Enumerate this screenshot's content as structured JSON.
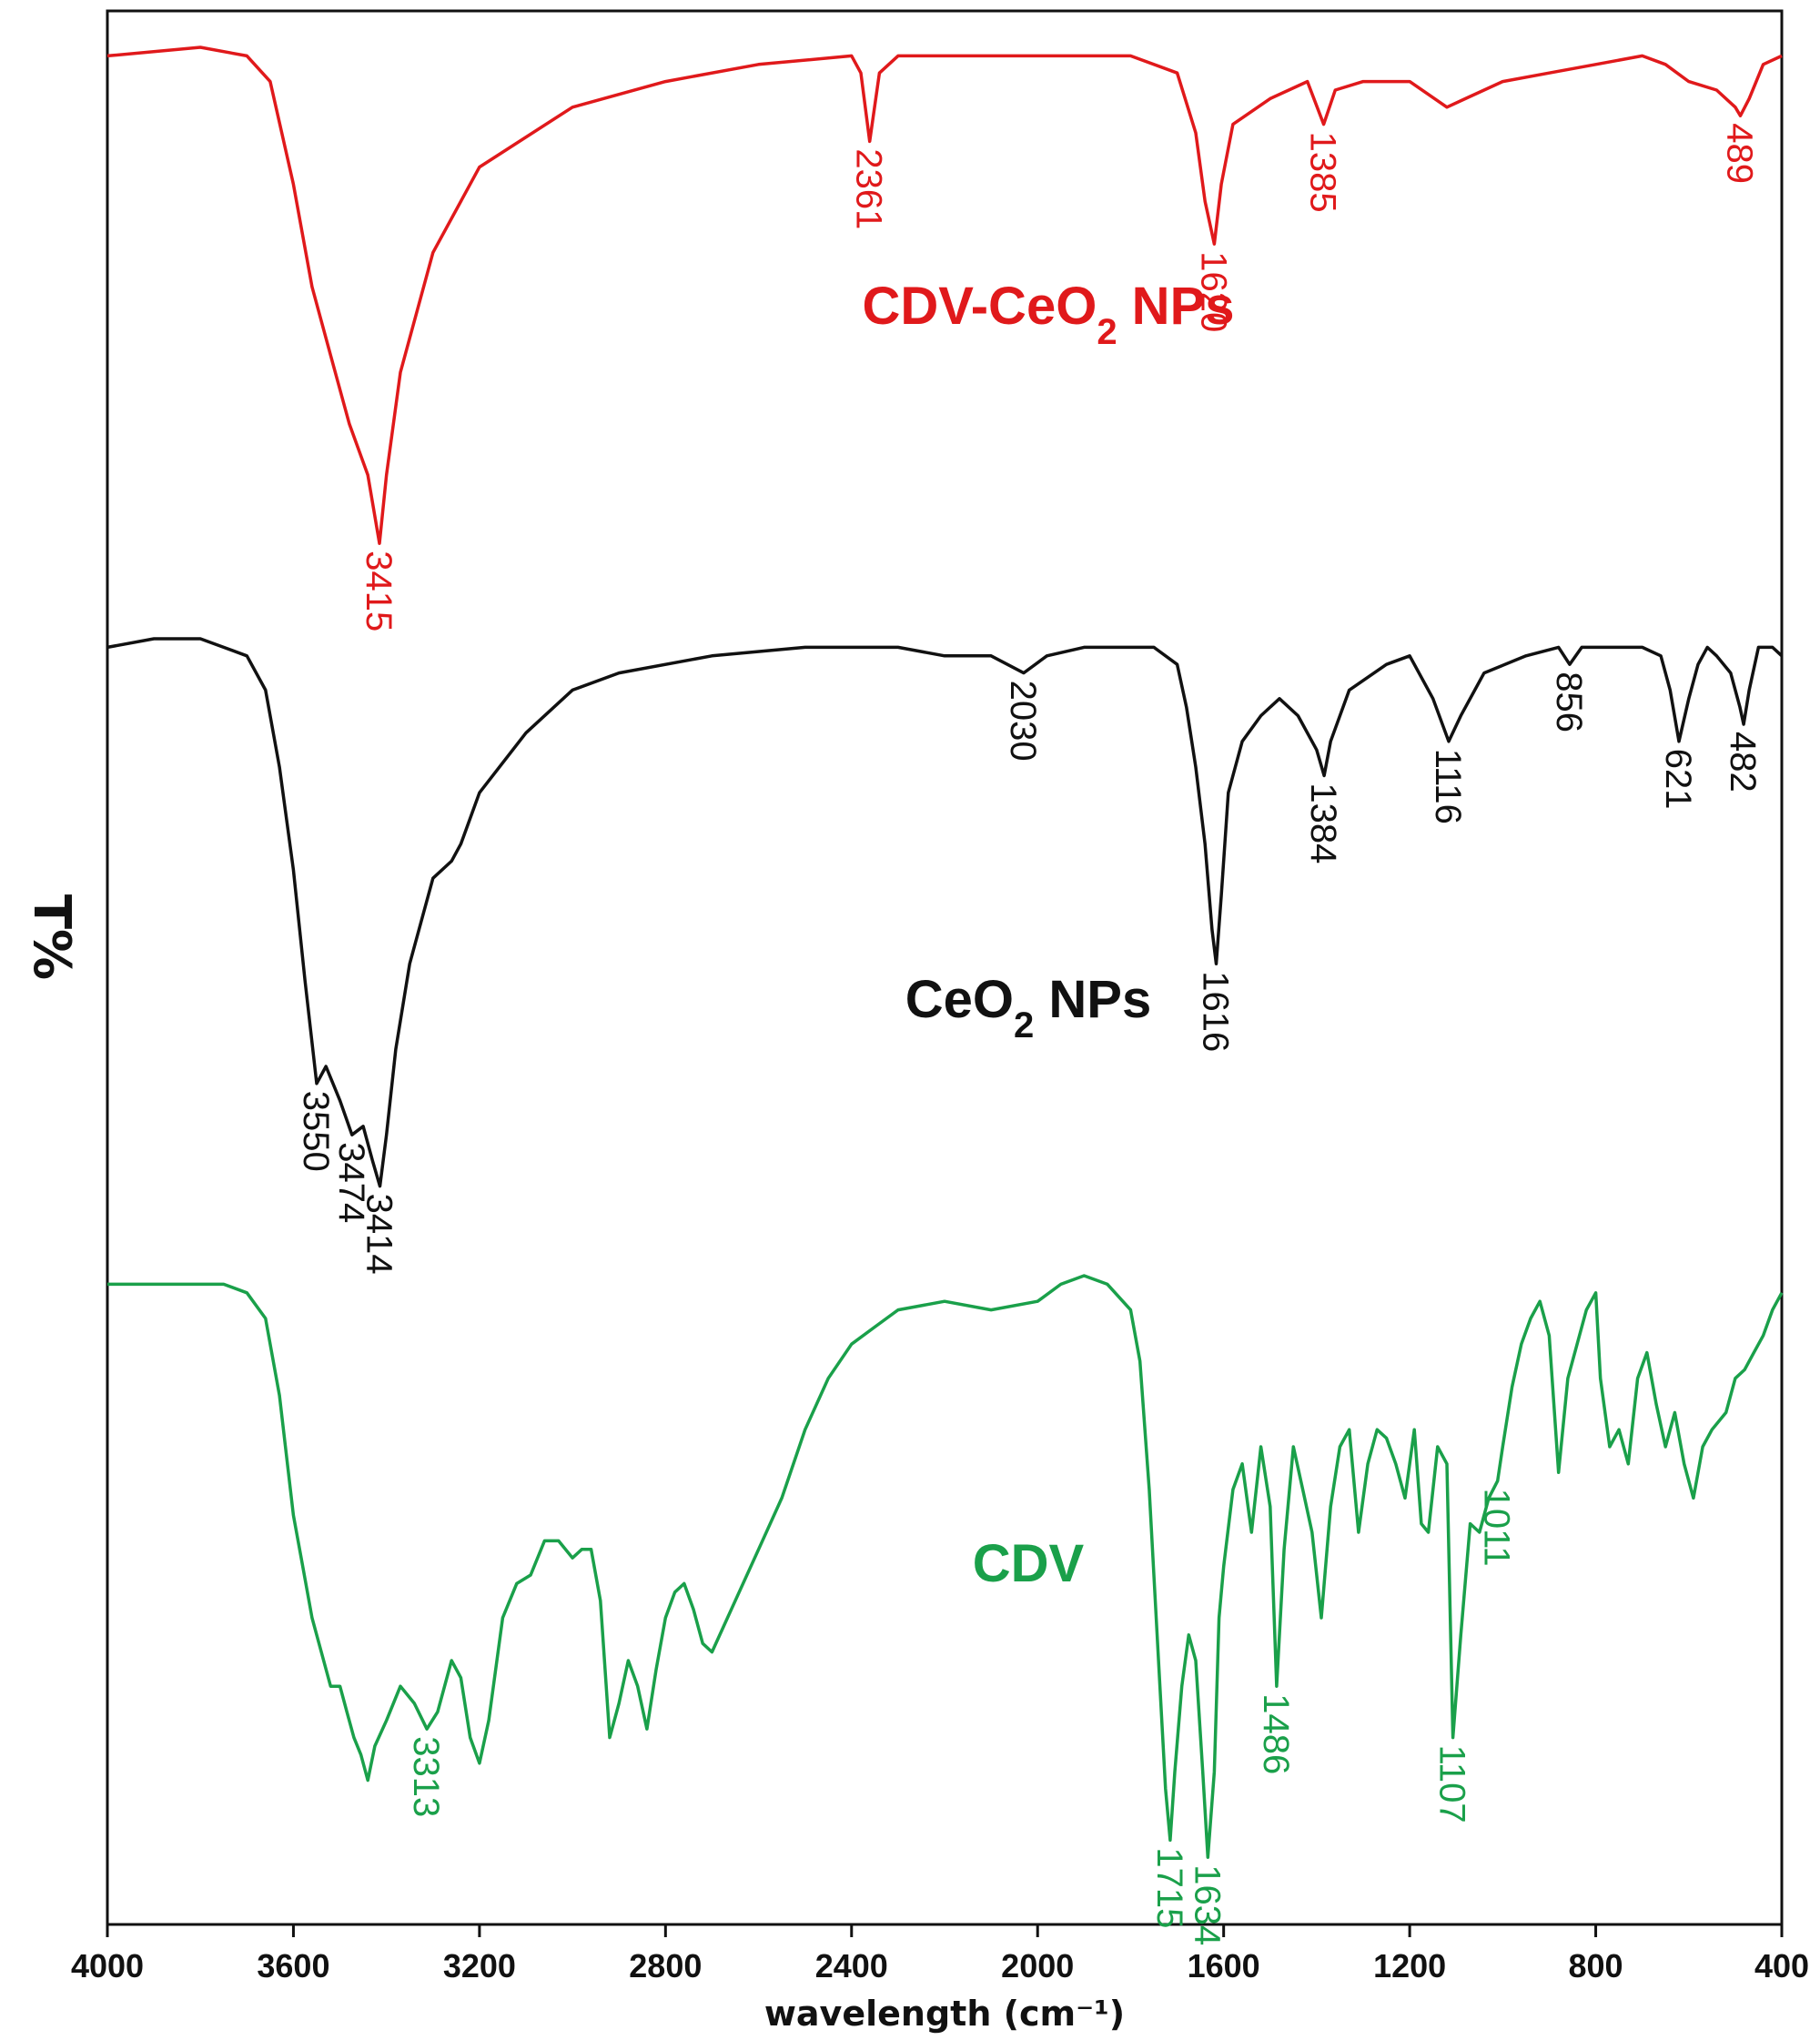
{
  "chart_data": {
    "type": "line",
    "xlabel": "wavelength (cm⁻¹)",
    "ylabel": "T%",
    "xlim": [
      4000,
      400
    ],
    "x_ticks": [
      4000,
      3600,
      3200,
      2800,
      2400,
      2000,
      1600,
      1200,
      800,
      400
    ],
    "grid": false,
    "legend": "none",
    "series": [
      {
        "key": "cdv_ceo2",
        "name": "CDV-CeO₂ NPs",
        "label_main": "CDV-CeO",
        "label_sub": "2",
        "label_tail": " NPs",
        "color": "#e0191b",
        "offset": 2.0,
        "points": [
          [
            4000,
            99
          ],
          [
            3800,
            100
          ],
          [
            3700,
            99
          ],
          [
            3650,
            96
          ],
          [
            3600,
            84
          ],
          [
            3560,
            72
          ],
          [
            3520,
            64
          ],
          [
            3480,
            56
          ],
          [
            3440,
            50
          ],
          [
            3415,
            42
          ],
          [
            3400,
            50
          ],
          [
            3370,
            62
          ],
          [
            3300,
            76
          ],
          [
            3200,
            86
          ],
          [
            3000,
            93
          ],
          [
            2800,
            96
          ],
          [
            2600,
            98
          ],
          [
            2400,
            99
          ],
          [
            2380,
            97
          ],
          [
            2361,
            89
          ],
          [
            2340,
            97
          ],
          [
            2300,
            99
          ],
          [
            2000,
            99
          ],
          [
            1800,
            99
          ],
          [
            1700,
            97
          ],
          [
            1660,
            90
          ],
          [
            1640,
            82
          ],
          [
            1620,
            77
          ],
          [
            1605,
            84
          ],
          [
            1580,
            91
          ],
          [
            1500,
            94
          ],
          [
            1420,
            96
          ],
          [
            1385,
            91
          ],
          [
            1360,
            95
          ],
          [
            1300,
            96
          ],
          [
            1200,
            96
          ],
          [
            1120,
            93
          ],
          [
            1080,
            94
          ],
          [
            1000,
            96
          ],
          [
            900,
            97
          ],
          [
            800,
            98
          ],
          [
            700,
            99
          ],
          [
            650,
            98
          ],
          [
            600,
            96
          ],
          [
            540,
            95
          ],
          [
            500,
            93
          ],
          [
            489,
            92
          ],
          [
            470,
            94
          ],
          [
            440,
            98
          ],
          [
            400,
            99
          ]
        ],
        "peaks": [
          3415,
          2361,
          1620,
          1385,
          489
        ]
      },
      {
        "key": "ceo2",
        "name": "CeO₂ NPs",
        "label_main": "CeO",
        "label_sub": "2",
        "label_tail": " NPs",
        "color": "#111111",
        "offset": 1.0,
        "points": [
          [
            4000,
            99
          ],
          [
            3900,
            100
          ],
          [
            3800,
            100
          ],
          [
            3750,
            99
          ],
          [
            3700,
            98
          ],
          [
            3660,
            94
          ],
          [
            3630,
            85
          ],
          [
            3600,
            73
          ],
          [
            3575,
            60
          ],
          [
            3550,
            48
          ],
          [
            3530,
            50
          ],
          [
            3500,
            46
          ],
          [
            3474,
            42
          ],
          [
            3450,
            43
          ],
          [
            3430,
            39
          ],
          [
            3414,
            36
          ],
          [
            3400,
            42
          ],
          [
            3380,
            52
          ],
          [
            3350,
            62
          ],
          [
            3300,
            72
          ],
          [
            3260,
            74
          ],
          [
            3240,
            76
          ],
          [
            3200,
            82
          ],
          [
            3100,
            89
          ],
          [
            3000,
            94
          ],
          [
            2900,
            96
          ],
          [
            2700,
            98
          ],
          [
            2500,
            99
          ],
          [
            2300,
            99
          ],
          [
            2200,
            98
          ],
          [
            2100,
            98
          ],
          [
            2030,
            96
          ],
          [
            1980,
            98
          ],
          [
            1900,
            99
          ],
          [
            1750,
            99
          ],
          [
            1700,
            97
          ],
          [
            1680,
            92
          ],
          [
            1660,
            85
          ],
          [
            1640,
            76
          ],
          [
            1625,
            66
          ],
          [
            1616,
            62
          ],
          [
            1605,
            70
          ],
          [
            1590,
            82
          ],
          [
            1560,
            88
          ],
          [
            1520,
            91
          ],
          [
            1480,
            93
          ],
          [
            1440,
            91
          ],
          [
            1400,
            87
          ],
          [
            1384,
            84
          ],
          [
            1370,
            88
          ],
          [
            1330,
            94
          ],
          [
            1250,
            97
          ],
          [
            1200,
            98
          ],
          [
            1150,
            93
          ],
          [
            1116,
            88
          ],
          [
            1090,
            91
          ],
          [
            1040,
            96
          ],
          [
            950,
            98
          ],
          [
            880,
            99
          ],
          [
            856,
            97
          ],
          [
            830,
            99
          ],
          [
            700,
            99
          ],
          [
            660,
            98
          ],
          [
            640,
            94
          ],
          [
            621,
            88
          ],
          [
            600,
            93
          ],
          [
            580,
            97
          ],
          [
            560,
            99
          ],
          [
            540,
            98
          ],
          [
            510,
            96
          ],
          [
            490,
            92
          ],
          [
            482,
            90
          ],
          [
            470,
            94
          ],
          [
            450,
            99
          ],
          [
            420,
            99
          ],
          [
            400,
            98
          ]
        ],
        "peaks": [
          3550,
          3474,
          3414,
          2030,
          1616,
          1384,
          1116,
          856,
          621,
          482
        ]
      },
      {
        "key": "cdv",
        "name": "CDV",
        "label_main": "CDV",
        "label_sub": "",
        "label_tail": "",
        "color": "#1aa04a",
        "offset": 0.0,
        "points": [
          [
            4000,
            99
          ],
          [
            3800,
            99
          ],
          [
            3750,
            99
          ],
          [
            3700,
            98
          ],
          [
            3660,
            95
          ],
          [
            3630,
            86
          ],
          [
            3600,
            72
          ],
          [
            3580,
            66
          ],
          [
            3560,
            60
          ],
          [
            3540,
            56
          ],
          [
            3520,
            52
          ],
          [
            3500,
            52
          ],
          [
            3485,
            49
          ],
          [
            3470,
            46
          ],
          [
            3455,
            44
          ],
          [
            3440,
            41
          ],
          [
            3425,
            45
          ],
          [
            3400,
            48
          ],
          [
            3370,
            52
          ],
          [
            3340,
            50
          ],
          [
            3313,
            47
          ],
          [
            3290,
            49
          ],
          [
            3260,
            55
          ],
          [
            3240,
            53
          ],
          [
            3220,
            46
          ],
          [
            3200,
            43
          ],
          [
            3180,
            48
          ],
          [
            3150,
            60
          ],
          [
            3120,
            64
          ],
          [
            3090,
            65
          ],
          [
            3060,
            69
          ],
          [
            3030,
            69
          ],
          [
            3000,
            67
          ],
          [
            2980,
            68
          ],
          [
            2960,
            68
          ],
          [
            2940,
            62
          ],
          [
            2920,
            46
          ],
          [
            2900,
            50
          ],
          [
            2880,
            55
          ],
          [
            2860,
            52
          ],
          [
            2840,
            47
          ],
          [
            2820,
            54
          ],
          [
            2800,
            60
          ],
          [
            2780,
            63
          ],
          [
            2760,
            64
          ],
          [
            2740,
            61
          ],
          [
            2720,
            57
          ],
          [
            2700,
            56
          ],
          [
            2650,
            62
          ],
          [
            2600,
            68
          ],
          [
            2550,
            74
          ],
          [
            2500,
            82
          ],
          [
            2450,
            88
          ],
          [
            2400,
            92
          ],
          [
            2350,
            94
          ],
          [
            2300,
            96
          ],
          [
            2200,
            97
          ],
          [
            2100,
            96
          ],
          [
            2000,
            97
          ],
          [
            1950,
            99
          ],
          [
            1900,
            100
          ],
          [
            1850,
            99
          ],
          [
            1800,
            96
          ],
          [
            1780,
            90
          ],
          [
            1760,
            75
          ],
          [
            1740,
            55
          ],
          [
            1725,
            40
          ],
          [
            1715,
            34
          ],
          [
            1705,
            42
          ],
          [
            1690,
            52
          ],
          [
            1675,
            58
          ],
          [
            1660,
            55
          ],
          [
            1645,
            42
          ],
          [
            1634,
            32
          ],
          [
            1620,
            42
          ],
          [
            1610,
            60
          ],
          [
            1600,
            66
          ],
          [
            1580,
            75
          ],
          [
            1560,
            78
          ],
          [
            1540,
            70
          ],
          [
            1520,
            80
          ],
          [
            1500,
            73
          ],
          [
            1486,
            52
          ],
          [
            1470,
            68
          ],
          [
            1450,
            80
          ],
          [
            1430,
            75
          ],
          [
            1410,
            70
          ],
          [
            1390,
            60
          ],
          [
            1370,
            73
          ],
          [
            1350,
            80
          ],
          [
            1330,
            82
          ],
          [
            1310,
            70
          ],
          [
            1290,
            78
          ],
          [
            1270,
            82
          ],
          [
            1250,
            81
          ],
          [
            1230,
            78
          ],
          [
            1210,
            74
          ],
          [
            1190,
            82
          ],
          [
            1175,
            71
          ],
          [
            1160,
            70
          ],
          [
            1140,
            80
          ],
          [
            1120,
            78
          ],
          [
            1107,
            46
          ],
          [
            1090,
            58
          ],
          [
            1070,
            71
          ],
          [
            1050,
            70
          ],
          [
            1030,
            74
          ],
          [
            1011,
            76
          ],
          [
            1000,
            80
          ],
          [
            980,
            87
          ],
          [
            960,
            92
          ],
          [
            940,
            95
          ],
          [
            920,
            97
          ],
          [
            900,
            93
          ],
          [
            880,
            77
          ],
          [
            860,
            88
          ],
          [
            840,
            92
          ],
          [
            820,
            96
          ],
          [
            800,
            98
          ],
          [
            790,
            88
          ],
          [
            770,
            80
          ],
          [
            750,
            82
          ],
          [
            730,
            78
          ],
          [
            710,
            88
          ],
          [
            690,
            91
          ],
          [
            670,
            85
          ],
          [
            650,
            80
          ],
          [
            630,
            84
          ],
          [
            610,
            78
          ],
          [
            590,
            74
          ],
          [
            570,
            80
          ],
          [
            550,
            82
          ],
          [
            520,
            84
          ],
          [
            500,
            88
          ],
          [
            480,
            89
          ],
          [
            460,
            91
          ],
          [
            440,
            93
          ],
          [
            420,
            96
          ],
          [
            400,
            98
          ]
        ],
        "peaks": [
          3313,
          1715,
          1634,
          1486,
          1107,
          1011
        ]
      }
    ]
  }
}
